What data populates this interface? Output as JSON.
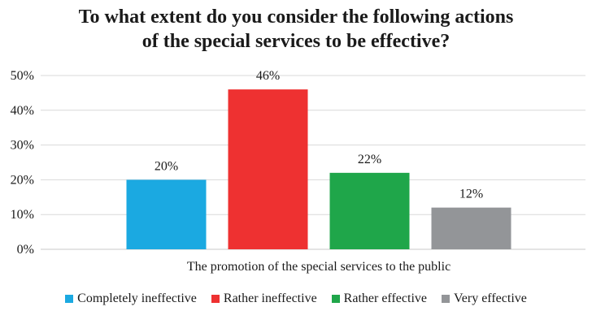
{
  "chart_data": {
    "type": "bar",
    "title_lines": [
      "To what extent do you consider the following actions",
      "of the special services to be effective?"
    ],
    "categories": [
      "The promotion of the special services to the public"
    ],
    "series": [
      {
        "name": "Completely ineffective",
        "values": [
          20
        ],
        "label": "20%",
        "color": "#1ba9e1"
      },
      {
        "name": "Rather ineffective",
        "values": [
          46
        ],
        "label": "46%",
        "color": "#ee3131"
      },
      {
        "name": "Rather effective",
        "values": [
          22
        ],
        "label": "22%",
        "color": "#1fa64a"
      },
      {
        "name": "Very effective",
        "values": [
          12
        ],
        "label": "12%",
        "color": "#939598"
      }
    ],
    "ylim": [
      0,
      50
    ],
    "y_ticks": [
      {
        "value": 0,
        "label": "0%"
      },
      {
        "value": 10,
        "label": "10%"
      },
      {
        "value": 20,
        "label": "20%"
      },
      {
        "value": 30,
        "label": "30%"
      },
      {
        "value": 40,
        "label": "40%"
      },
      {
        "value": 50,
        "label": "50%"
      }
    ],
    "grid": true,
    "legend_position": "bottom"
  }
}
